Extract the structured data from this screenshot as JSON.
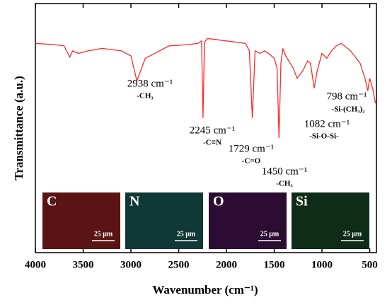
{
  "chart_data": {
    "type": "line",
    "x_label": "Wavenumber (cm⁻¹)",
    "y_label": "Transmittance (a.u.)",
    "xlim": [
      4000,
      430
    ],
    "ylim": [
      0,
      100
    ],
    "xticks": [
      4000,
      3500,
      3000,
      2500,
      2000,
      1500,
      1000,
      500
    ],
    "color": "#ff2a2a",
    "x": [
      4000,
      3800,
      3700,
      3660,
      3640,
      3610,
      3550,
      3450,
      3300,
      3100,
      3000,
      2938,
      2850,
      2600,
      2400,
      2300,
      2260,
      2245,
      2230,
      2200,
      2000,
      1800,
      1760,
      1729,
      1700,
      1650,
      1600,
      1560,
      1500,
      1470,
      1450,
      1430,
      1410,
      1380,
      1300,
      1260,
      1200,
      1150,
      1120,
      1082,
      1050,
      1000,
      950,
      900,
      850,
      798,
      700,
      600,
      550,
      520,
      500,
      470,
      440
    ],
    "values": [
      84,
      83.5,
      83,
      80,
      78.5,
      81,
      80,
      81,
      82,
      81,
      79,
      69,
      78,
      83,
      83.5,
      84,
      85,
      54,
      84.5,
      86,
      85,
      84,
      81,
      54,
      81,
      80,
      81,
      80,
      78,
      74,
      46,
      76,
      82,
      79,
      74,
      70,
      73,
      77,
      76,
      66,
      73,
      80,
      78,
      81,
      83,
      84,
      81,
      76,
      70,
      65,
      70,
      66,
      60
    ],
    "annotations": [
      {
        "text": "2938 cm⁻¹",
        "group": "-CH₃"
      },
      {
        "text": "2245 cm⁻¹",
        "group": "-C≡N"
      },
      {
        "text": "1729 cm⁻¹",
        "group": "-C=O"
      },
      {
        "text": "1450 cm⁻¹",
        "group": "-CH₃"
      },
      {
        "text": "1082 cm⁻¹",
        "group": "-Si-O-Si-"
      },
      {
        "text": "798 cm⁻¹",
        "group": "-Si-(CH₃)₂"
      }
    ],
    "insets": [
      {
        "label": "C",
        "scale_bar": "25 μm",
        "color": "#5a1414"
      },
      {
        "label": "N",
        "scale_bar": "25 μm",
        "color": "#103836"
      },
      {
        "label": "O",
        "scale_bar": "25 μm",
        "color": "#2c0c32"
      },
      {
        "label": "Si",
        "scale_bar": "25 μm",
        "color": "#0f2c18"
      }
    ]
  }
}
